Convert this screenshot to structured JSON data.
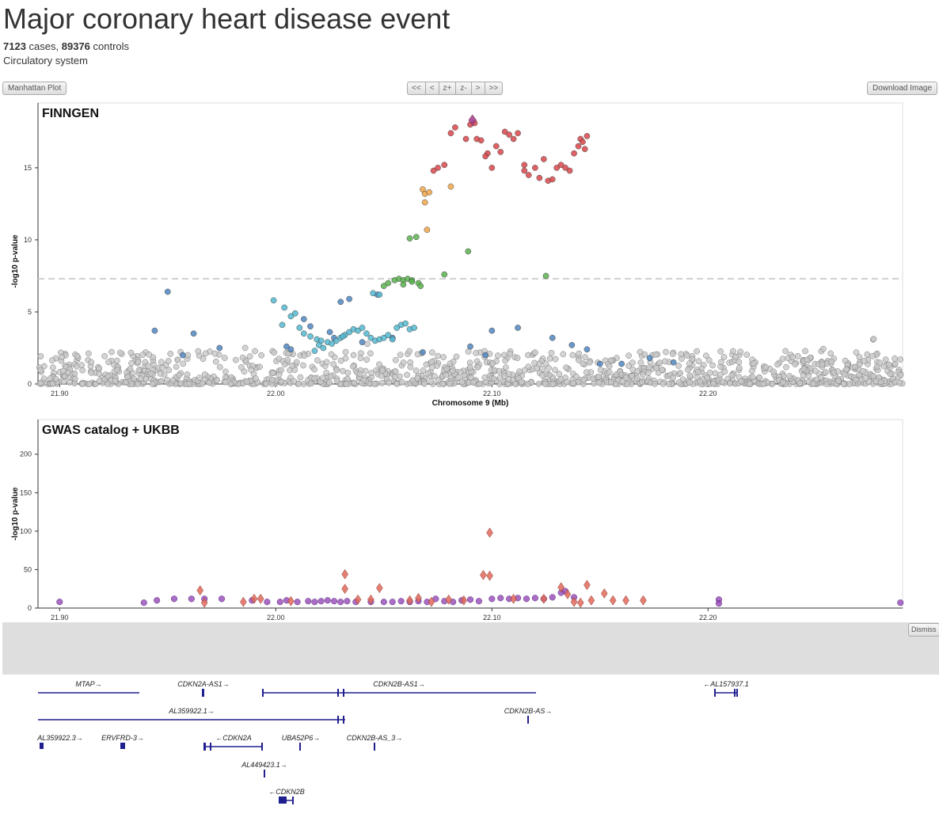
{
  "page": {
    "title": "Major coronary heart disease event",
    "cases_count": "7123",
    "cases_label": "cases,",
    "controls_count": "89376",
    "controls_label": "controls",
    "category": "Circulatory system"
  },
  "toolbar": {
    "manhattan_label": "Manhattan Plot",
    "download_label": "Download Image",
    "dismiss_label": "Dismiss",
    "nav": [
      "<<",
      "<",
      "z+",
      "z-",
      ">",
      ">>"
    ]
  },
  "colors": {
    "gray_point": "#c8c8c8",
    "ld_blue": "#4f86c0",
    "ld_cyan": "#53b8d0",
    "ld_green": "#5ab14f",
    "ld_orange": "#f0a64a",
    "ld_red": "#d8474a",
    "lead_purple": "#9c3b8b",
    "gwas_purple": "#8e3cb3",
    "gwas_salmon": "#e0695a",
    "gene_blue": "#1f1f8f",
    "threshold": "#d0d0d0"
  },
  "chart_data": [
    {
      "type": "scatter",
      "title": "FINNGEN",
      "xlabel": "Chromosome 9 (Mb)",
      "ylabel": "-log10 p-value",
      "xlim": [
        21.89,
        22.29
      ],
      "ylim": [
        0,
        19.5
      ],
      "x_ticks": [
        "21.90",
        "22.00",
        "22.10",
        "22.20"
      ],
      "y_ticks": [
        "0",
        "5",
        "10",
        "15"
      ],
      "genome_wide_threshold": 7.3,
      "background_noise": {
        "x_range": [
          21.89,
          22.29
        ],
        "y_range": [
          0,
          2.3
        ],
        "count": 1200
      },
      "series": [
        {
          "color_key": "ld_red",
          "points": [
            [
              22.081,
              17.4
            ],
            [
              22.083,
              17.8
            ],
            [
              22.088,
              17.0
            ],
            [
              22.09,
              18.0
            ],
            [
              22.092,
              18.1
            ],
            [
              22.093,
              17.0
            ],
            [
              22.095,
              16.9
            ],
            [
              22.098,
              16.0
            ],
            [
              22.1,
              15.0
            ],
            [
              22.102,
              16.5
            ],
            [
              22.104,
              16.1
            ],
            [
              22.106,
              17.5
            ],
            [
              22.108,
              17.3
            ],
            [
              22.11,
              17.0
            ],
            [
              22.112,
              17.4
            ],
            [
              22.115,
              15.2
            ],
            [
              22.117,
              14.5
            ],
            [
              22.12,
              15.0
            ],
            [
              22.122,
              14.3
            ],
            [
              22.124,
              15.6
            ],
            [
              22.126,
              14.1
            ],
            [
              22.128,
              14.2
            ],
            [
              22.13,
              15.0
            ],
            [
              22.132,
              15.2
            ],
            [
              22.134,
              15.0
            ],
            [
              22.136,
              14.8
            ],
            [
              22.138,
              16.0
            ],
            [
              22.14,
              16.5
            ],
            [
              22.141,
              17.0
            ],
            [
              22.142,
              16.8
            ],
            [
              22.143,
              16.3
            ],
            [
              22.144,
              17.2
            ],
            [
              22.075,
              15.0
            ],
            [
              22.078,
              15.2
            ],
            [
              22.073,
              14.8
            ],
            [
              22.097,
              15.8
            ],
            [
              22.115,
              14.8
            ]
          ]
        },
        {
          "color_key": "ld_orange",
          "points": [
            [
              22.068,
              13.5
            ],
            [
              22.069,
              13.2
            ],
            [
              22.069,
              12.6
            ],
            [
              22.071,
              13.3
            ],
            [
              22.07,
              10.7
            ],
            [
              22.081,
              13.7
            ]
          ]
        },
        {
          "color_key": "ld_green",
          "points": [
            [
              22.062,
              10.1
            ],
            [
              22.065,
              10.2
            ],
            [
              22.078,
              7.6
            ],
            [
              22.089,
              9.2
            ],
            [
              22.125,
              7.5
            ],
            [
              22.052,
              7.0
            ],
            [
              22.055,
              7.2
            ],
            [
              22.057,
              7.3
            ],
            [
              22.059,
              7.2
            ],
            [
              22.061,
              7.3
            ],
            [
              22.063,
              7.2
            ],
            [
              22.066,
              7.0
            ],
            [
              22.067,
              6.8
            ],
            [
              22.059,
              6.9
            ],
            [
              22.063,
              7.1
            ],
            [
              22.05,
              6.8
            ]
          ]
        },
        {
          "color_key": "ld_blue",
          "points": [
            [
              22.047,
              6.2
            ],
            [
              21.95,
              6.4
            ],
            [
              21.944,
              3.7
            ],
            [
              21.974,
              2.5
            ],
            [
              21.962,
              3.5
            ],
            [
              22.034,
              5.9
            ],
            [
              22.03,
              5.7
            ],
            [
              22.013,
              4.5
            ],
            [
              22.025,
              3.6
            ],
            [
              22.027,
              3.2
            ],
            [
              22.09,
              2.6
            ],
            [
              22.097,
              2.0
            ],
            [
              22.1,
              3.7
            ],
            [
              22.112,
              3.9
            ],
            [
              22.128,
              3.2
            ],
            [
              22.137,
              2.7
            ],
            [
              22.144,
              2.4
            ],
            [
              22.15,
              1.4
            ],
            [
              22.16,
              1.4
            ],
            [
              22.173,
              1.8
            ],
            [
              22.184,
              1.5
            ],
            [
              22.054,
              3.2
            ],
            [
              22.04,
              2.9
            ],
            [
              22.005,
              2.6
            ],
            [
              22.007,
              2.4
            ],
            [
              21.957,
              2.0
            ],
            [
              22.068,
              2.2
            ],
            [
              22.016,
              4.0
            ]
          ]
        },
        {
          "color_key": "ld_cyan",
          "points": [
            [
              21.999,
              5.8
            ],
            [
              22.004,
              5.3
            ],
            [
              22.003,
              4.1
            ],
            [
              22.007,
              4.7
            ],
            [
              22.011,
              3.9
            ],
            [
              22.009,
              4.9
            ],
            [
              22.013,
              3.5
            ],
            [
              22.016,
              3.3
            ],
            [
              22.019,
              3.1
            ],
            [
              22.021,
              3.0
            ],
            [
              22.024,
              2.9
            ],
            [
              22.026,
              2.8
            ],
            [
              22.028,
              3.0
            ],
            [
              22.03,
              3.2
            ],
            [
              22.032,
              3.4
            ],
            [
              22.034,
              3.6
            ],
            [
              22.036,
              3.8
            ],
            [
              22.038,
              3.7
            ],
            [
              22.04,
              3.9
            ],
            [
              22.042,
              3.5
            ],
            [
              22.044,
              3.2
            ],
            [
              22.046,
              3.0
            ],
            [
              22.048,
              3.1
            ],
            [
              22.05,
              3.2
            ],
            [
              22.052,
              3.4
            ],
            [
              22.054,
              3.1
            ],
            [
              22.056,
              3.9
            ],
            [
              22.058,
              4.1
            ],
            [
              22.06,
              4.2
            ],
            [
              22.062,
              3.8
            ],
            [
              22.064,
              3.9
            ],
            [
              22.045,
              6.3
            ],
            [
              22.048,
              6.2
            ],
            [
              22.02,
              2.7
            ],
            [
              22.022,
              2.5
            ],
            [
              22.018,
              2.3
            ],
            [
              22.031,
              3.3
            ]
          ]
        },
        {
          "color_key": "lead_purple",
          "marker": "diamond",
          "points": [
            [
              22.091,
              18.3
            ]
          ]
        }
      ]
    },
    {
      "type": "scatter",
      "title": "GWAS catalog + UKBB",
      "ylabel": "-log10 p-value",
      "xlim": [
        21.89,
        22.29
      ],
      "ylim": [
        0,
        245
      ],
      "x_ticks": [
        "21.90",
        "22.00",
        "22.10",
        "22.20"
      ],
      "y_ticks": [
        "0",
        "50",
        "100",
        "150",
        "200"
      ],
      "series": [
        {
          "color_key": "gwas_purple",
          "marker": "circle",
          "points": [
            [
              21.9,
              8
            ],
            [
              21.939,
              7
            ],
            [
              21.945,
              10
            ],
            [
              21.953,
              12
            ],
            [
              21.961,
              12
            ],
            [
              21.967,
              12
            ],
            [
              21.975,
              12
            ],
            [
              21.989,
              10
            ],
            [
              21.996,
              8
            ],
            [
              22.002,
              8
            ],
            [
              22.005,
              10
            ],
            [
              22.01,
              8
            ],
            [
              22.015,
              9
            ],
            [
              22.018,
              8
            ],
            [
              22.021,
              9
            ],
            [
              22.024,
              10
            ],
            [
              22.027,
              9
            ],
            [
              22.03,
              8
            ],
            [
              22.033,
              9
            ],
            [
              22.037,
              8
            ],
            [
              22.044,
              8
            ],
            [
              22.05,
              8
            ],
            [
              22.054,
              8
            ],
            [
              22.058,
              9
            ],
            [
              22.062,
              8
            ],
            [
              22.066,
              9
            ],
            [
              22.07,
              8
            ],
            [
              22.074,
              12
            ],
            [
              22.078,
              9
            ],
            [
              22.082,
              8
            ],
            [
              22.086,
              10
            ],
            [
              22.09,
              11
            ],
            [
              22.094,
              9
            ],
            [
              22.1,
              12
            ],
            [
              22.104,
              13
            ],
            [
              22.108,
              12
            ],
            [
              22.112,
              13
            ],
            [
              22.116,
              12
            ],
            [
              22.12,
              13
            ],
            [
              22.124,
              12
            ],
            [
              22.128,
              14
            ],
            [
              22.132,
              20
            ],
            [
              22.134,
              22
            ],
            [
              22.138,
              14
            ],
            [
              22.205,
              11
            ],
            [
              22.205,
              6
            ],
            [
              22.289,
              7
            ]
          ]
        },
        {
          "color_key": "gwas_salmon",
          "marker": "diamond",
          "points": [
            [
              21.965,
              23
            ],
            [
              21.967,
              7
            ],
            [
              21.985,
              8
            ],
            [
              21.99,
              12
            ],
            [
              21.993,
              12
            ],
            [
              22.007,
              9
            ],
            [
              22.032,
              44
            ],
            [
              22.032,
              25
            ],
            [
              22.038,
              11
            ],
            [
              22.044,
              11
            ],
            [
              22.048,
              26
            ],
            [
              22.062,
              10
            ],
            [
              22.066,
              13
            ],
            [
              22.072,
              8
            ],
            [
              22.08,
              11
            ],
            [
              22.087,
              10
            ],
            [
              22.096,
              43
            ],
            [
              22.099,
              42
            ],
            [
              22.099,
              98
            ],
            [
              22.11,
              12
            ],
            [
              22.124,
              12
            ],
            [
              22.132,
              27
            ],
            [
              22.135,
              18
            ],
            [
              22.138,
              8
            ],
            [
              22.141,
              7
            ],
            [
              22.144,
              30
            ],
            [
              22.146,
              10
            ],
            [
              22.152,
              19
            ],
            [
              22.156,
              10
            ],
            [
              22.162,
              10
            ],
            [
              22.17,
              10
            ]
          ]
        }
      ]
    }
  ],
  "genes": [
    {
      "label": "MTAP→"
    },
    {
      "label": "CDKN2A-AS1→"
    },
    {
      "label": "CDKN2B-AS1→"
    },
    {
      "label": "←AL157937.1"
    },
    {
      "label": "AL359922.1→"
    },
    {
      "label": "CDKN2B-AS→"
    },
    {
      "label": "AL359922.3→"
    },
    {
      "label": "ERVFRD-3→"
    },
    {
      "label": "←CDKN2A"
    },
    {
      "label": "UBA52P6→"
    },
    {
      "label": "CDKN2B-AS_3→"
    },
    {
      "label": "AL449423.1→"
    },
    {
      "label": "←CDKN2B"
    }
  ]
}
